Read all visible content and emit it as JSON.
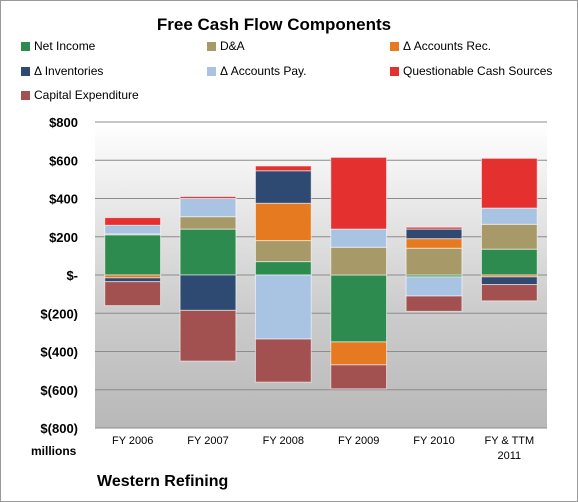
{
  "chart_data": {
    "type": "bar",
    "stacked": true,
    "title": "Free Cash Flow Components",
    "categories": [
      "FY 2006",
      "FY 2007",
      "FY 2008",
      "FY 2009",
      "FY 2010",
      "FY & TTM 2011"
    ],
    "ylim": [
      -800,
      800
    ],
    "yticks": [
      800,
      600,
      400,
      200,
      0,
      -200,
      -400,
      -600,
      -800
    ],
    "ytick_labels": [
      "$800",
      "$600",
      "$400",
      "$200",
      "$-",
      "$(200)",
      "$(400)",
      "$(600)",
      "$(800)"
    ],
    "units_label": "millions",
    "grid": true,
    "legend_position": "top",
    "series": [
      {
        "name": "Net Income",
        "color": "#2e8b4f",
        "values": [
          210,
          240,
          70,
          -350,
          -10,
          135
        ]
      },
      {
        "name": "D&A",
        "color": "#a89a68",
        "values": [
          5,
          65,
          110,
          145,
          140,
          130
        ]
      },
      {
        "name": "Δ Accounts Rec.",
        "color": "#e67a20",
        "values": [
          -15,
          0,
          195,
          -120,
          50,
          -10
        ]
      },
      {
        "name": "Δ Inventories",
        "color": "#2e4a72",
        "values": [
          -20,
          -185,
          170,
          0,
          50,
          -40
        ]
      },
      {
        "name": "Δ Accounts Pay.",
        "color": "#a9c3e3",
        "values": [
          45,
          95,
          -335,
          95,
          -100,
          85
        ]
      },
      {
        "name": "Questionable Cash Sources",
        "color": "#e53030",
        "values": [
          40,
          10,
          25,
          375,
          10,
          260
        ]
      },
      {
        "name": "Capital Expenditure",
        "color": "#a35050",
        "values": [
          -125,
          -265,
          -225,
          -125,
          -80,
          -85
        ]
      }
    ]
  },
  "footer": {
    "units": "millions",
    "company": "Western Refining"
  }
}
